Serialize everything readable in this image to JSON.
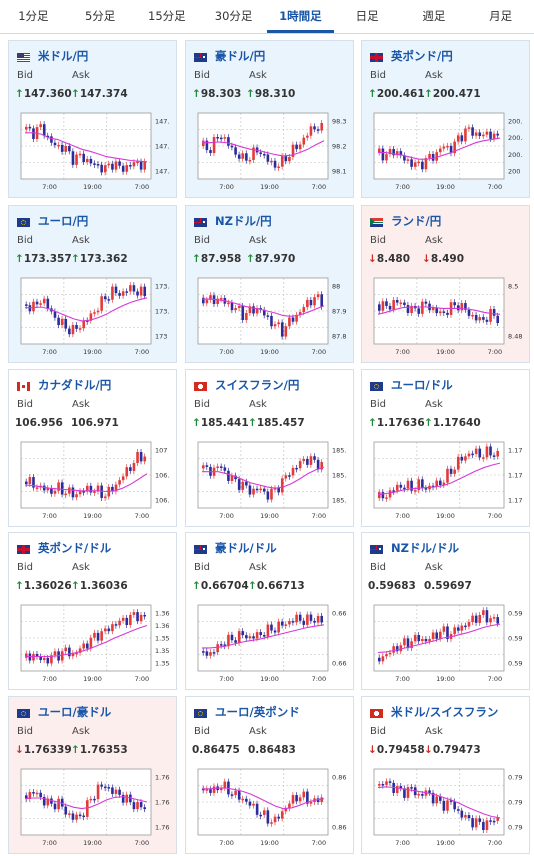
{
  "tabs": [
    {
      "label": "1分足"
    },
    {
      "label": "5分足"
    },
    {
      "label": "15分足"
    },
    {
      "label": "30分足"
    },
    {
      "label": "1時間足",
      "active": true
    },
    {
      "label": "日足"
    },
    {
      "label": "週足"
    },
    {
      "label": "月足"
    }
  ],
  "labels": {
    "bid": "Bid",
    "ask": "Ask"
  },
  "x_ticks": [
    "7:00",
    "19:00",
    "7:00"
  ],
  "colors": {
    "up_arrow": "#1f8a3a",
    "down_arrow": "#d02b2b",
    "ma": "#d63ad6",
    "title": "#1a56a8"
  },
  "cards": [
    {
      "name": "米ドル/円",
      "flag": "us",
      "tone": "up",
      "bid_dir": "up",
      "ask_dir": "up",
      "bid": "147.360",
      "ask": "147.374",
      "y_ticks": [
        "147.8",
        "147.6",
        "147.4"
      ],
      "chart_data": {
        "type": "candlestick",
        "trend": [
          0.75,
          0.7,
          0.8,
          0.55,
          0.5,
          0.45,
          0.3,
          0.35,
          0.25,
          0.2,
          0.15,
          0.25,
          0.15,
          0.2,
          0.25,
          0.2
        ],
        "ma": [
          0.7,
          0.7,
          0.68,
          0.62,
          0.6,
          0.55,
          0.5,
          0.45,
          0.42,
          0.38,
          0.34,
          0.32,
          0.3,
          0.28,
          0.27,
          0.26
        ]
      }
    },
    {
      "name": "豪ドル/円",
      "flag": "au",
      "tone": "up",
      "bid_dir": "up",
      "ask_dir": "up",
      "bid": "98.303",
      "ask": "98.310",
      "y_ticks": [
        "98.3",
        "98.2",
        "98.1"
      ],
      "chart_data": {
        "type": "candlestick",
        "trend": [
          0.5,
          0.45,
          0.7,
          0.55,
          0.4,
          0.3,
          0.35,
          0.45,
          0.3,
          0.2,
          0.25,
          0.4,
          0.5,
          0.65,
          0.8,
          0.75
        ],
        "ma": [
          0.55,
          0.55,
          0.56,
          0.55,
          0.52,
          0.48,
          0.45,
          0.43,
          0.4,
          0.37,
          0.35,
          0.36,
          0.4,
          0.45,
          0.52,
          0.58
        ]
      }
    },
    {
      "name": "英ポンド/円",
      "flag": "gb",
      "tone": "up",
      "bid_dir": "up",
      "ask_dir": "up",
      "bid": "200.461",
      "ask": "200.471",
      "y_ticks": [
        "200.6",
        "200.4",
        "200.2",
        "200"
      ],
      "chart_data": {
        "type": "candlestick",
        "trend": [
          0.4,
          0.35,
          0.45,
          0.3,
          0.25,
          0.2,
          0.3,
          0.35,
          0.5,
          0.45,
          0.6,
          0.75,
          0.7,
          0.65,
          0.7,
          0.6
        ],
        "ma": [
          0.4,
          0.4,
          0.38,
          0.36,
          0.33,
          0.3,
          0.3,
          0.32,
          0.36,
          0.4,
          0.45,
          0.5,
          0.55,
          0.58,
          0.6,
          0.62
        ]
      }
    },
    {
      "name": "ユーロ/円",
      "flag": "eu",
      "tone": "up",
      "bid_dir": "up",
      "ask_dir": "up",
      "bid": "173.357",
      "ask": "173.362",
      "y_ticks": [
        "173.4",
        "173.2",
        "173"
      ],
      "chart_data": {
        "type": "candlestick",
        "trend": [
          0.6,
          0.55,
          0.7,
          0.5,
          0.35,
          0.25,
          0.2,
          0.3,
          0.4,
          0.55,
          0.7,
          0.8,
          0.75,
          0.85,
          0.8,
          0.75
        ],
        "ma": [
          0.55,
          0.55,
          0.56,
          0.53,
          0.48,
          0.43,
          0.38,
          0.35,
          0.36,
          0.4,
          0.45,
          0.52,
          0.58,
          0.63,
          0.67,
          0.7
        ]
      }
    },
    {
      "name": "NZドル/円",
      "flag": "nz",
      "tone": "up",
      "bid_dir": "up",
      "ask_dir": "up",
      "bid": "87.958",
      "ask": "87.970",
      "y_ticks": [
        "88",
        "87.9",
        "87.8"
      ],
      "chart_data": {
        "type": "candlestick",
        "trend": [
          0.7,
          0.65,
          0.7,
          0.6,
          0.55,
          0.45,
          0.5,
          0.55,
          0.4,
          0.3,
          0.2,
          0.35,
          0.45,
          0.6,
          0.7,
          0.65
        ],
        "ma": [
          0.68,
          0.68,
          0.67,
          0.65,
          0.62,
          0.58,
          0.55,
          0.53,
          0.5,
          0.47,
          0.43,
          0.42,
          0.44,
          0.48,
          0.53,
          0.58
        ]
      }
    },
    {
      "name": "ランド/円",
      "flag": "za",
      "tone": "down",
      "bid_dir": "down",
      "ask_dir": "down",
      "bid": "8.480",
      "ask": "8.490",
      "y_ticks": [
        "8.5",
        "8.48"
      ],
      "chart_data": {
        "type": "candlestick",
        "trend": [
          0.6,
          0.55,
          0.65,
          0.6,
          0.5,
          0.55,
          0.6,
          0.5,
          0.45,
          0.55,
          0.6,
          0.5,
          0.4,
          0.35,
          0.45,
          0.4
        ],
        "ma": [
          0.45,
          0.48,
          0.52,
          0.55,
          0.56,
          0.56,
          0.56,
          0.55,
          0.54,
          0.54,
          0.54,
          0.53,
          0.51,
          0.48,
          0.46,
          0.45
        ]
      }
    },
    {
      "name": "カナダドル/円",
      "flag": "ca",
      "tone": "neutral",
      "bid_dir": "none",
      "ask_dir": "none",
      "bid": "106.956",
      "ask": "106.971",
      "y_ticks": [
        "107",
        "106.8",
        "106.6"
      ],
      "chart_data": {
        "type": "candlestick",
        "trend": [
          0.4,
          0.35,
          0.3,
          0.25,
          0.3,
          0.25,
          0.2,
          0.25,
          0.3,
          0.25,
          0.2,
          0.3,
          0.45,
          0.6,
          0.75,
          0.8
        ],
        "ma": [
          0.35,
          0.34,
          0.32,
          0.3,
          0.29,
          0.28,
          0.27,
          0.26,
          0.26,
          0.26,
          0.25,
          0.26,
          0.3,
          0.36,
          0.44,
          0.52
        ]
      }
    },
    {
      "name": "スイスフラン/円",
      "flag": "ch",
      "tone": "neutral",
      "bid_dir": "up",
      "ask_dir": "up",
      "bid": "185.441",
      "ask": "185.457",
      "y_ticks": [
        "185.6",
        "185.4",
        "185.2"
      ],
      "chart_data": {
        "type": "candlestick",
        "trend": [
          0.6,
          0.55,
          0.65,
          0.5,
          0.4,
          0.35,
          0.25,
          0.3,
          0.2,
          0.25,
          0.4,
          0.55,
          0.65,
          0.75,
          0.7,
          0.65
        ],
        "ma": [
          0.55,
          0.55,
          0.55,
          0.52,
          0.48,
          0.43,
          0.38,
          0.35,
          0.32,
          0.3,
          0.32,
          0.37,
          0.44,
          0.52,
          0.58,
          0.62
        ]
      }
    },
    {
      "name": "ユーロ/ドル",
      "flag": "eu",
      "tone": "neutral",
      "bid_dir": "up",
      "ask_dir": "up",
      "bid": "1.17636",
      "ask": "1.17640",
      "y_ticks": [
        "1.176",
        "1.174",
        "1.172"
      ],
      "chart_data": {
        "type": "candlestick",
        "trend": [
          0.15,
          0.2,
          0.3,
          0.35,
          0.3,
          0.35,
          0.3,
          0.35,
          0.4,
          0.55,
          0.7,
          0.8,
          0.85,
          0.8,
          0.85,
          0.8
        ],
        "ma": [
          0.2,
          0.22,
          0.24,
          0.27,
          0.29,
          0.3,
          0.31,
          0.32,
          0.34,
          0.38,
          0.44,
          0.5,
          0.56,
          0.61,
          0.65,
          0.68
        ]
      }
    },
    {
      "name": "英ポンド/ドル",
      "flag": "gb",
      "tone": "neutral",
      "bid_dir": "up",
      "ask_dir": "up",
      "bid": "1.36026",
      "ask": "1.36036",
      "y_ticks": [
        "1.362",
        "1.36",
        "1.358",
        "1.356",
        "1.354"
      ],
      "chart_data": {
        "type": "candlestick",
        "trend": [
          0.2,
          0.25,
          0.15,
          0.2,
          0.25,
          0.3,
          0.25,
          0.35,
          0.45,
          0.55,
          0.6,
          0.7,
          0.75,
          0.8,
          0.85,
          0.8
        ],
        "ma": [
          0.22,
          0.22,
          0.22,
          0.22,
          0.23,
          0.25,
          0.27,
          0.3,
          0.34,
          0.39,
          0.44,
          0.5,
          0.55,
          0.6,
          0.65,
          0.69
        ]
      }
    },
    {
      "name": "豪ドル/ドル",
      "flag": "au",
      "tone": "neutral",
      "bid_dir": "up",
      "ask_dir": "up",
      "bid": "0.66704",
      "ask": "0.66713",
      "y_ticks": [
        "0.666",
        "0.664"
      ],
      "chart_data": {
        "type": "candlestick",
        "trend": [
          0.3,
          0.25,
          0.4,
          0.45,
          0.5,
          0.55,
          0.5,
          0.55,
          0.6,
          0.65,
          0.7,
          0.75,
          0.8,
          0.75,
          0.8,
          0.75
        ],
        "ma": [
          0.35,
          0.35,
          0.36,
          0.38,
          0.41,
          0.44,
          0.46,
          0.48,
          0.51,
          0.54,
          0.57,
          0.6,
          0.63,
          0.66,
          0.68,
          0.7
        ]
      }
    },
    {
      "name": "NZドル/ドル",
      "flag": "nz",
      "tone": "neutral",
      "bid_dir": "none",
      "ask_dir": "none",
      "bid": "0.59683",
      "ask": "0.59697",
      "y_ticks": [
        "0.597",
        "0.596",
        "0.595"
      ],
      "chart_data": {
        "type": "candlestick",
        "trend": [
          0.2,
          0.25,
          0.35,
          0.4,
          0.45,
          0.5,
          0.45,
          0.55,
          0.6,
          0.55,
          0.65,
          0.7,
          0.8,
          0.85,
          0.8,
          0.75
        ],
        "ma": [
          0.28,
          0.29,
          0.31,
          0.34,
          0.37,
          0.4,
          0.43,
          0.46,
          0.5,
          0.52,
          0.55,
          0.58,
          0.62,
          0.66,
          0.69,
          0.71
        ]
      }
    },
    {
      "name": "ユーロ/豪ドル",
      "flag": "eu",
      "tone": "down",
      "bid_dir": "down",
      "ask_dir": "up",
      "bid": "1.76339",
      "ask": "1.76353",
      "y_ticks": [
        "1.766",
        "1.764",
        "1.762"
      ],
      "chart_data": {
        "type": "candlestick",
        "trend": [
          0.6,
          0.65,
          0.55,
          0.45,
          0.5,
          0.35,
          0.25,
          0.3,
          0.5,
          0.7,
          0.75,
          0.65,
          0.6,
          0.5,
          0.45,
          0.4
        ],
        "ma": [
          0.55,
          0.56,
          0.56,
          0.53,
          0.5,
          0.46,
          0.42,
          0.4,
          0.42,
          0.47,
          0.53,
          0.57,
          0.58,
          0.56,
          0.53,
          0.5
        ]
      }
    },
    {
      "name": "ユーロ/英ポンド",
      "flag": "eu",
      "tone": "neutral",
      "bid_dir": "none",
      "ask_dir": "none",
      "bid": "0.86475",
      "ask": "0.86483",
      "y_ticks": [
        "0.865",
        "0.864"
      ],
      "chart_data": {
        "type": "candlestick",
        "trend": [
          0.7,
          0.65,
          0.75,
          0.7,
          0.6,
          0.55,
          0.45,
          0.35,
          0.25,
          0.2,
          0.35,
          0.5,
          0.6,
          0.55,
          0.5,
          0.55
        ],
        "ma": [
          0.7,
          0.7,
          0.71,
          0.71,
          0.69,
          0.66,
          0.62,
          0.56,
          0.5,
          0.44,
          0.4,
          0.41,
          0.45,
          0.5,
          0.53,
          0.55
        ]
      }
    },
    {
      "name": "米ドル/スイスフラン",
      "flag": "ch",
      "tone": "neutral",
      "bid_dir": "down",
      "ask_dir": "down",
      "bid": "0.79458",
      "ask": "0.79473",
      "y_ticks": [
        "0.798",
        "0.796",
        "0.794"
      ],
      "chart_data": {
        "type": "candlestick",
        "trend": [
          0.75,
          0.8,
          0.7,
          0.65,
          0.7,
          0.6,
          0.65,
          0.55,
          0.45,
          0.5,
          0.35,
          0.25,
          0.2,
          0.15,
          0.2,
          0.25
        ],
        "ma": [
          0.72,
          0.73,
          0.72,
          0.7,
          0.68,
          0.66,
          0.64,
          0.61,
          0.57,
          0.53,
          0.48,
          0.42,
          0.37,
          0.32,
          0.28,
          0.26
        ]
      }
    }
  ]
}
